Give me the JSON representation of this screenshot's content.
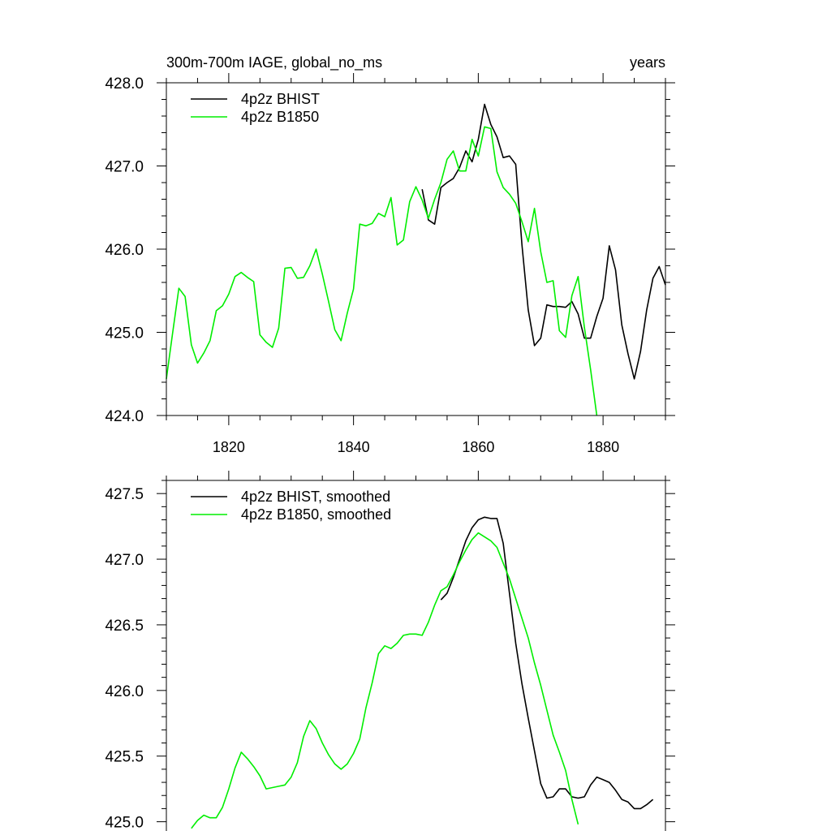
{
  "chart_data": [
    {
      "type": "line",
      "title_left": "300m-700m IAGE, global_no_ms",
      "title_right": "years",
      "xlim": [
        1810,
        1890
      ],
      "ylim": [
        424.0,
        428.0
      ],
      "x_ticks": [
        "1820",
        "1840",
        "1860",
        "1880"
      ],
      "y_ticks": [
        "424.0",
        "425.0",
        "426.0",
        "427.0",
        "428.0"
      ],
      "legend_position": "top-left",
      "series": [
        {
          "name": "4p2z BHIST",
          "color": "#000000",
          "x": [
            1851,
            1852,
            1853,
            1854,
            1855,
            1856,
            1857,
            1858,
            1859,
            1860,
            1861,
            1862,
            1863,
            1864,
            1865,
            1866,
            1867,
            1868,
            1869,
            1870,
            1871,
            1872,
            1873,
            1874,
            1875,
            1876,
            1877,
            1878,
            1879,
            1880,
            1881,
            1882,
            1883,
            1884,
            1885,
            1886,
            1887,
            1888,
            1889,
            1890
          ],
          "y": [
            426.72,
            426.35,
            426.3,
            426.74,
            426.8,
            426.85,
            426.98,
            427.18,
            427.05,
            427.32,
            427.74,
            427.5,
            427.35,
            427.1,
            427.12,
            427.02,
            426.05,
            425.27,
            424.84,
            424.93,
            425.33,
            425.31,
            425.31,
            425.3,
            425.37,
            425.22,
            424.93,
            424.93,
            425.19,
            425.41,
            426.04,
            425.75,
            425.09,
            424.74,
            424.44,
            424.77,
            425.27,
            425.65,
            425.79,
            425.57
          ]
        },
        {
          "name": "4p2z B1850",
          "color": "#00ee00",
          "x": [
            1810,
            1811,
            1812,
            1813,
            1814,
            1815,
            1816,
            1817,
            1818,
            1819,
            1820,
            1821,
            1822,
            1823,
            1824,
            1825,
            1826,
            1827,
            1828,
            1829,
            1830,
            1831,
            1832,
            1833,
            1834,
            1835,
            1836,
            1837,
            1838,
            1839,
            1840,
            1841,
            1842,
            1843,
            1844,
            1845,
            1846,
            1847,
            1848,
            1849,
            1850,
            1851,
            1852,
            1853,
            1854,
            1855,
            1856,
            1857,
            1858,
            1859,
            1860,
            1861,
            1862,
            1863,
            1864,
            1865,
            1866,
            1867,
            1868,
            1869,
            1870,
            1871,
            1872,
            1873,
            1874,
            1875,
            1876,
            1877,
            1878,
            1879
          ],
          "y": [
            424.44,
            424.99,
            425.53,
            425.43,
            424.85,
            424.63,
            424.75,
            424.9,
            425.26,
            425.32,
            425.46,
            425.67,
            425.72,
            425.66,
            425.61,
            424.97,
            424.88,
            424.82,
            425.05,
            425.77,
            425.78,
            425.65,
            425.66,
            425.8,
            426.0,
            425.7,
            425.37,
            425.03,
            424.9,
            425.23,
            425.52,
            426.3,
            426.28,
            426.31,
            426.43,
            426.39,
            426.62,
            426.05,
            426.11,
            426.57,
            426.75,
            426.59,
            426.37,
            426.6,
            426.8,
            427.08,
            427.18,
            426.94,
            426.94,
            427.32,
            427.12,
            427.47,
            427.45,
            426.93,
            426.74,
            426.66,
            426.55,
            426.33,
            426.09,
            426.49,
            425.97,
            425.6,
            425.62,
            425.02,
            424.94,
            425.44,
            425.67,
            425.06,
            424.55,
            424.0
          ]
        }
      ]
    },
    {
      "type": "line",
      "title_left": "",
      "title_right": "",
      "xlim": [
        1810,
        1890
      ],
      "ylim": [
        424.88,
        427.6
      ],
      "x_ticks": [],
      "y_ticks": [
        "425.0",
        "425.5",
        "426.0",
        "426.5",
        "427.0",
        "427.5"
      ],
      "legend_position": "top-left",
      "series": [
        {
          "name": "4p2z BHIST, smoothed",
          "color": "#000000",
          "x": [
            1854,
            1855,
            1856,
            1857,
            1858,
            1859,
            1860,
            1861,
            1862,
            1863,
            1864,
            1865,
            1866,
            1867,
            1868,
            1869,
            1870,
            1871,
            1872,
            1873,
            1874,
            1875,
            1876,
            1877,
            1878,
            1879,
            1880,
            1881,
            1882,
            1883,
            1884,
            1885,
            1886,
            1887,
            1888
          ],
          "y": [
            426.69,
            426.74,
            426.86,
            427.0,
            427.14,
            427.24,
            427.3,
            427.32,
            427.31,
            427.31,
            427.12,
            426.74,
            426.36,
            426.05,
            425.79,
            425.54,
            425.29,
            425.18,
            425.19,
            425.25,
            425.25,
            425.19,
            425.18,
            425.19,
            425.28,
            425.34,
            425.32,
            425.3,
            425.24,
            425.17,
            425.15,
            425.1,
            425.1,
            425.13,
            425.17
          ]
        },
        {
          "name": "4p2z B1850, smoothed",
          "color": "#00ee00",
          "x": [
            1814,
            1815,
            1816,
            1817,
            1818,
            1819,
            1820,
            1821,
            1822,
            1823,
            1824,
            1825,
            1826,
            1827,
            1828,
            1829,
            1830,
            1831,
            1832,
            1833,
            1834,
            1835,
            1836,
            1837,
            1838,
            1839,
            1840,
            1841,
            1842,
            1843,
            1844,
            1845,
            1846,
            1847,
            1848,
            1849,
            1850,
            1851,
            1852,
            1853,
            1854,
            1855,
            1856,
            1857,
            1858,
            1859,
            1860,
            1861,
            1862,
            1863,
            1864,
            1865,
            1866,
            1867,
            1868,
            1869,
            1870,
            1871,
            1872,
            1873,
            1874,
            1875,
            1876
          ],
          "y": [
            424.95,
            425.01,
            425.05,
            425.03,
            425.03,
            425.11,
            425.25,
            425.41,
            425.53,
            425.48,
            425.42,
            425.35,
            425.25,
            425.26,
            425.27,
            425.28,
            425.34,
            425.45,
            425.65,
            425.77,
            425.71,
            425.6,
            425.51,
            425.44,
            425.4,
            425.44,
            425.52,
            425.63,
            425.87,
            426.06,
            426.28,
            426.34,
            426.32,
            426.36,
            426.42,
            426.43,
            426.43,
            426.42,
            426.52,
            426.65,
            426.76,
            426.79,
            426.88,
            426.98,
            427.07,
            427.15,
            427.2,
            427.17,
            427.14,
            427.09,
            426.97,
            426.85,
            426.7,
            426.55,
            426.4,
            426.21,
            426.04,
            425.85,
            425.66,
            425.53,
            425.39,
            425.17,
            424.98
          ]
        }
      ]
    }
  ]
}
